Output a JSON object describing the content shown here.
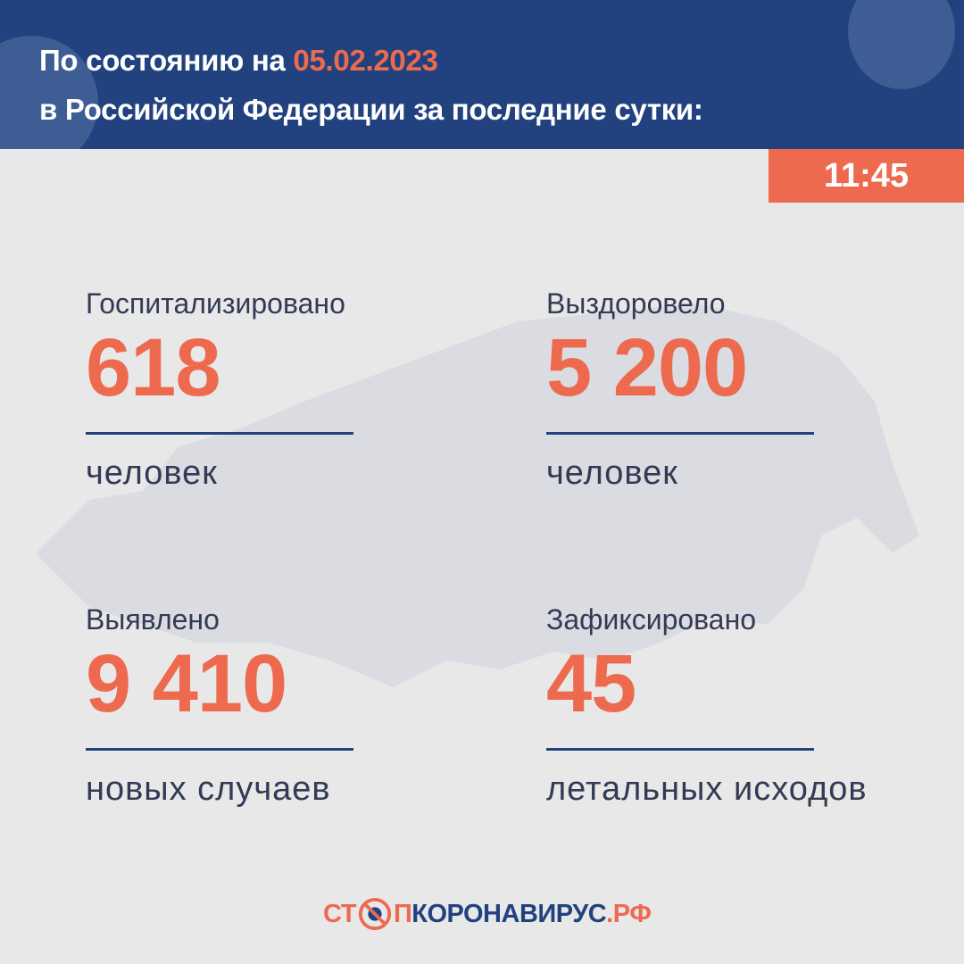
{
  "header": {
    "title_prefix": "По состоянию на",
    "date": "05.02.2023",
    "title_line2": "в Российской Федерации за последние сутки:"
  },
  "time": "11:45",
  "stats": [
    {
      "label": "Госпитализировано",
      "value": "618",
      "unit": "человек"
    },
    {
      "label": "Выздоровело",
      "value": "5 200",
      "unit": "человек"
    },
    {
      "label": "Выявлено",
      "value": "9 410",
      "unit": "новых случаев"
    },
    {
      "label": "Зафиксировано",
      "value": "45",
      "unit": "летальных исходов"
    }
  ],
  "logo": {
    "part1": "СТ",
    "part2": "П",
    "part3": "КОРОНАВИРУС",
    "part4": ".РФ"
  },
  "colors": {
    "brand_blue": "#22427f",
    "accent_orange": "#ee6a4f",
    "background": "#e8e8e8"
  }
}
